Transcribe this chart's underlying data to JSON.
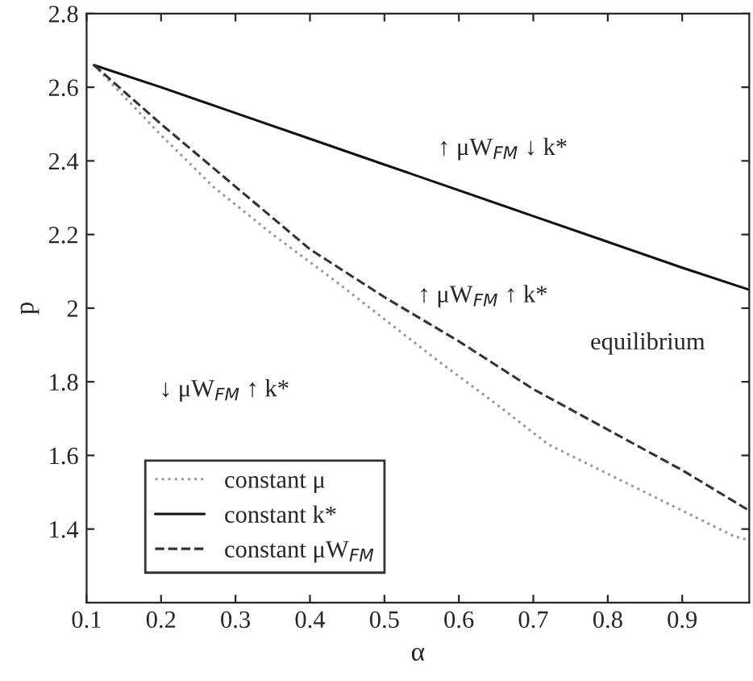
{
  "chart_data": {
    "type": "line",
    "xlabel": "α",
    "ylabel": "p",
    "x": [
      0.11,
      0.2,
      0.27,
      0.3,
      0.35,
      0.4,
      0.43,
      0.5,
      0.57,
      0.6,
      0.65,
      0.7,
      0.72,
      0.8,
      0.87,
      0.9,
      0.97,
      0.99
    ],
    "series": [
      {
        "name": "constant μ",
        "color": "#999999",
        "line_style": "dotted",
        "values": [
          2.66,
          2.47,
          2.33,
          null,
          2.2,
          null,
          2.08,
          1.97,
          1.86,
          null,
          1.74,
          null,
          1.63,
          1.55,
          1.48,
          null,
          1.38,
          1.37
        ]
      },
      {
        "name": "constant k*",
        "color": "#111111",
        "line_style": "solid",
        "values": [
          2.66,
          2.6,
          null,
          2.53,
          null,
          2.46,
          null,
          2.39,
          null,
          2.32,
          null,
          2.25,
          null,
          2.18,
          null,
          2.11,
          null,
          2.05
        ]
      },
      {
        "name": "constant μW$_{FM}$",
        "color": "#333333",
        "line_style": "dashed",
        "values": [
          2.66,
          2.5,
          null,
          2.33,
          null,
          2.16,
          null,
          2.03,
          null,
          1.91,
          null,
          1.78,
          null,
          1.67,
          null,
          1.56,
          null,
          1.45
        ]
      }
    ],
    "xlim": [
      0.1,
      0.99
    ],
    "ylim": [
      1.2,
      2.8
    ],
    "xticks": [
      0.1,
      0.2,
      0.3,
      0.4,
      0.5,
      0.6,
      0.7,
      0.8,
      0.9
    ],
    "yticks": [
      1.4,
      1.6,
      1.8,
      2,
      2.2,
      2.4,
      2.6,
      2.8
    ],
    "annotations": [
      "↑ μW$_{FM}$ ↓ k*",
      "↑ μW$_{FM}$ ↑ k*",
      "equilibrium",
      "↓ μW$_{FM}$ ↑ k*"
    ],
    "legend": "bottom left",
    "grid": false,
    "marker": "none"
  }
}
